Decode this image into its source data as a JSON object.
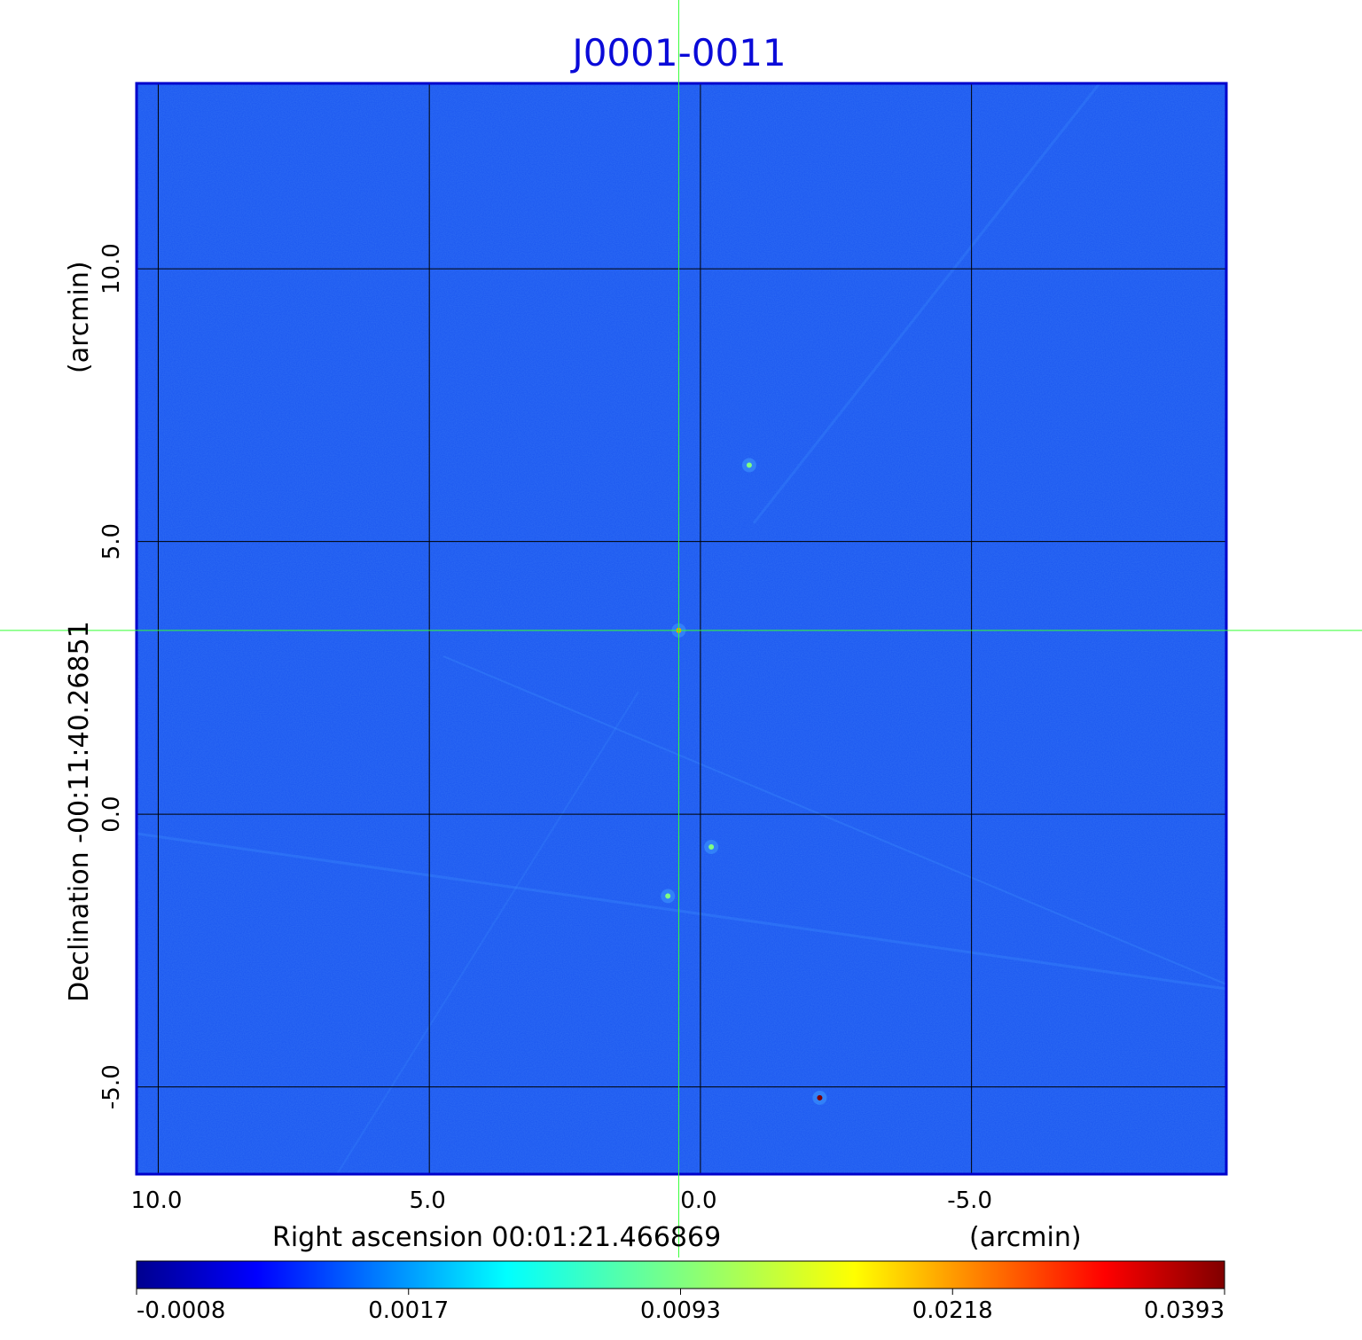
{
  "chart_data": {
    "type": "heatmap",
    "title": "J0001-0011",
    "xlabel": "Right ascension  00:01:21.466869",
    "xunit": "(arcmin)",
    "ylabel": "Declination  -00:11:40.26851",
    "yunit": "(arcmin)",
    "xlim": [
      10.4,
      -9.7
    ],
    "ylim": [
      -6.6,
      13.4
    ],
    "x_ticks": [
      10.0,
      5.0,
      0.0,
      -5.0
    ],
    "x_tick_labels": [
      "10.0",
      "5.0",
      "0.0",
      "-5.0"
    ],
    "y_ticks": [
      10.0,
      5.0,
      0.0,
      -5.0
    ],
    "y_tick_labels": [
      "10.0",
      "5.0",
      "0.0",
      "-5.0"
    ],
    "grid": true,
    "crosshair": {
      "x": 0.4,
      "y": 3.37
    },
    "colorbar": {
      "ticks": [
        -0.0008,
        0.0017,
        0.0093,
        0.0218,
        0.0393
      ],
      "labels": [
        "-0.0008",
        "0.0017",
        "0.0093",
        "0.0218",
        "0.0393"
      ],
      "colormap": "jet"
    },
    "sources": [
      {
        "x": 0.4,
        "y": 3.37,
        "level": 0.0218
      },
      {
        "x": -2.2,
        "y": -5.2,
        "level": 0.0393
      },
      {
        "x": 0.6,
        "y": -1.5,
        "level": 0.0093
      },
      {
        "x": -0.9,
        "y": 6.4,
        "level": 0.0093
      },
      {
        "x": -0.2,
        "y": -0.6,
        "level": 0.0093
      }
    ],
    "colors": {
      "background": "#1a55f0",
      "title": "#0a0ad8",
      "crosshair": "#33ff33",
      "grid": "#000000",
      "frame": "#0000cc"
    }
  }
}
